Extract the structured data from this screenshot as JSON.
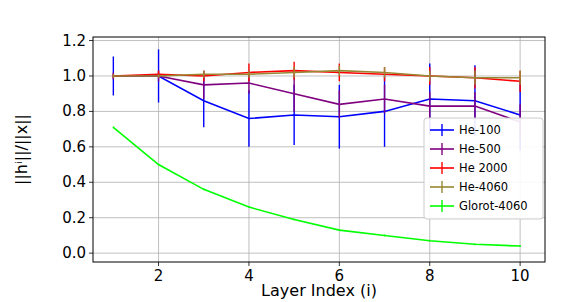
{
  "chart_data": {
    "type": "line",
    "x_label": "Layer Index (i)",
    "y_label": "||hⁱ||/||x||",
    "x": [
      1,
      2,
      3,
      4,
      5,
      6,
      7,
      8,
      9,
      10
    ],
    "xlim": [
      0.55,
      10.55
    ],
    "ylim": [
      -0.05,
      1.22
    ],
    "xticks": [
      2,
      4,
      6,
      8,
      10
    ],
    "yticks": [
      {
        "value": 0,
        "label": "0.0"
      },
      0.2,
      0.4,
      0.6,
      0.8,
      {
        "value": 1,
        "label": "1.0"
      },
      1.2
    ],
    "grid": true,
    "legend": "right",
    "marker": "none",
    "line_style": "solid",
    "series": [
      {
        "name": "He-100",
        "color": "#0000ff",
        "values": [
          1.0,
          1.0,
          0.86,
          0.76,
          0.78,
          0.77,
          0.8,
          0.87,
          0.86,
          0.78
        ],
        "errors": [
          0.11,
          0.15,
          0.15,
          0.16,
          0.17,
          0.18,
          0.2,
          0.2,
          0.2,
          0.2
        ]
      },
      {
        "name": "He-500",
        "color": "#800080",
        "values": [
          1.0,
          1.0,
          0.95,
          0.96,
          0.9,
          0.84,
          0.87,
          0.83,
          0.83,
          0.74
        ],
        "errors": [
          0.02,
          0.03,
          0.08,
          0.06,
          0.1,
          0.08,
          0.08,
          0.08,
          0.08,
          0.1
        ]
      },
      {
        "name": "He 2000",
        "color": "#ff0000",
        "values": [
          1.0,
          1.01,
          1.0,
          1.02,
          1.03,
          1.02,
          1.01,
          1.0,
          0.99,
          0.97
        ],
        "errors": [
          0.01,
          0.02,
          0.03,
          0.05,
          0.05,
          0.05,
          0.04,
          0.05,
          0.06,
          0.06
        ]
      },
      {
        "name": "He-4060",
        "color": "#998833",
        "values": [
          1.0,
          1.0,
          1.01,
          1.01,
          1.02,
          1.03,
          1.02,
          1.0,
          0.99,
          0.99
        ],
        "errors": [
          0.01,
          0.01,
          0.02,
          0.02,
          0.03,
          0.03,
          0.03,
          0.03,
          0.04,
          0.04
        ]
      },
      {
        "name": "Glorot-4060",
        "color": "#00ff00",
        "values": [
          0.71,
          0.5,
          0.36,
          0.26,
          0.19,
          0.13,
          0.1,
          0.07,
          0.05,
          0.04
        ],
        "errors": [
          0.005,
          0.005,
          0.005,
          0.005,
          0.005,
          0.005,
          0.005,
          0.005,
          0.005,
          0.005
        ]
      }
    ]
  }
}
